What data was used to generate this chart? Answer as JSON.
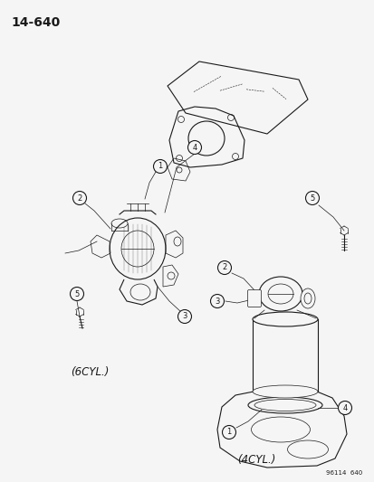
{
  "title": "14-640",
  "footer": "96114  640",
  "label_6cyl": "(6CYL.)",
  "label_4cyl": "(4CYL.)",
  "bg_color": "#f5f5f5",
  "line_color": "#1a1a1a",
  "text_color": "#1a1a1a",
  "fig_width": 4.14,
  "fig_height": 5.33,
  "dpi": 100
}
